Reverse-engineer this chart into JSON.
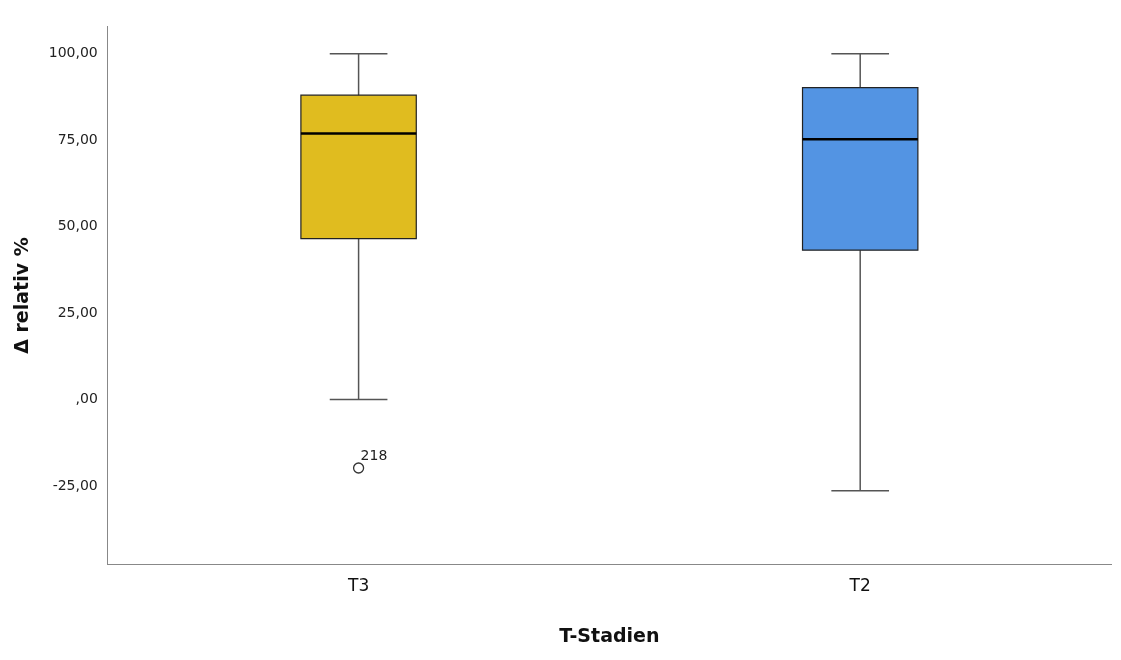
{
  "chart_data": {
    "type": "box",
    "xlabel": "T-Stadien",
    "ylabel": "Δ relativ %",
    "categories": [
      "T3",
      "T2"
    ],
    "colors": [
      "#e0bc1f",
      "#5394e3"
    ],
    "boxes": [
      {
        "low": 0,
        "q1": 46.5,
        "median": 76.9,
        "q3": 88,
        "high": 100,
        "outliers": [
          -19.8
        ]
      },
      {
        "low": -26.4,
        "q1": 43.2,
        "median": 75.3,
        "q3": 90.2,
        "high": 100
      }
    ],
    "ylim": [
      -47.8,
      107.9
    ],
    "yticks": [
      {
        "value": -25,
        "label": "-25,00"
      },
      {
        "value": 0,
        "label": ",00"
      },
      {
        "value": 25,
        "label": "25,00"
      },
      {
        "value": 50,
        "label": "50,00"
      },
      {
        "value": 75,
        "label": "75,00"
      },
      {
        "value": 100,
        "label": "100,00"
      }
    ],
    "annotations": [
      "218"
    ],
    "grid": false,
    "legend": false
  }
}
